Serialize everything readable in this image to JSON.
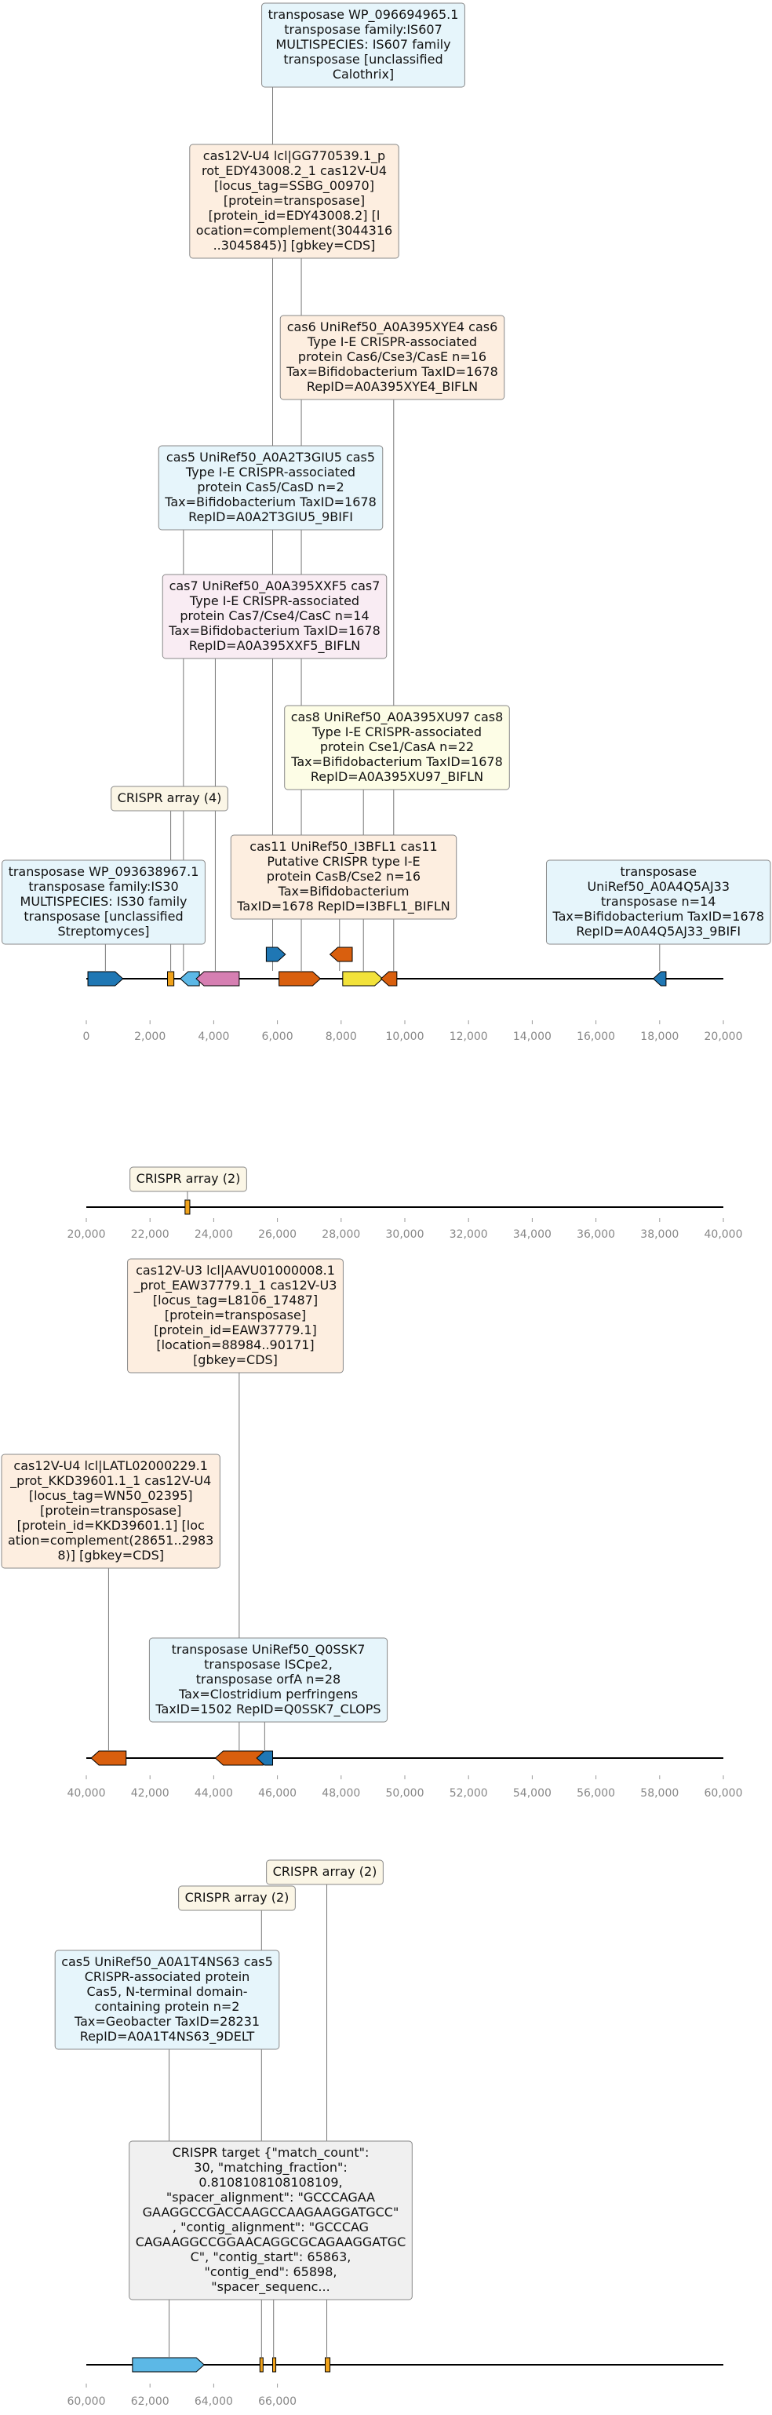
{
  "colors": {
    "blue": "#1f77b4",
    "orange": "#d95f0e",
    "gold": "#f0a21a",
    "light_blue": "#5cb8e6",
    "pink": "#d67fb2",
    "yellow": "#f2e23a",
    "box_blue": "#e6f5fb",
    "box_peach": "#fdeee0",
    "box_yellow": "#fdfde6",
    "box_pink": "#f9ecf3",
    "box_gray": "#f0f0f0",
    "box_cream": "#fbf6e6"
  },
  "tracks": [
    {
      "name": "track-1",
      "range": [
        0,
        20000
      ],
      "ticks": [
        "0",
        "2,000",
        "4,000",
        "6,000",
        "8,000",
        "10,000",
        "12,000",
        "14,000",
        "16,000",
        "18,000",
        "20,000"
      ],
      "features": [
        {
          "start": 50,
          "end": 1150,
          "strand": 1,
          "color": "blue"
        },
        {
          "start": 2550,
          "end": 2750,
          "strand": 0,
          "color": "gold"
        },
        {
          "start": 2950,
          "end": 3550,
          "strand": -1,
          "color": "light_blue"
        },
        {
          "start": 3450,
          "end": 4800,
          "strand": -1,
          "color": "pink"
        },
        {
          "start": 5650,
          "end": 6250,
          "strand": 1,
          "color": "blue",
          "lane": 1
        },
        {
          "start": 6050,
          "end": 7350,
          "strand": 1,
          "color": "orange"
        },
        {
          "start": 7650,
          "end": 8350,
          "strand": -1,
          "color": "orange",
          "lane": 1
        },
        {
          "start": 8050,
          "end": 9300,
          "strand": 1,
          "color": "yellow"
        },
        {
          "start": 9250,
          "end": 9750,
          "strand": -1,
          "color": "orange"
        },
        {
          "start": 17800,
          "end": 18200,
          "strand": -1,
          "color": "blue"
        }
      ],
      "annotations": [
        {
          "lines": [
            "transposase WP_096694965.1",
            "transposase family:IS607",
            "MULTISPECIES: IS607 family",
            "transposase [unclassified",
            "Calothrix]"
          ],
          "box": "box_blue",
          "anchor": 5850
        },
        {
          "lines": [
            "cas12V-U4 lcl|GG770539.1_p",
            "rot_EDY43008.2_1 cas12V-U4",
            "[locus_tag=SSBG_00970]",
            "[protein=transposase]",
            "[protein_id=EDY43008.2] [l",
            "ocation=complement(3044316",
            "..3045845)] [gbkey=CDS]"
          ],
          "box": "box_peach",
          "anchor": 6750
        },
        {
          "lines": [
            "cas6 UniRef50_A0A395XYE4 cas6",
            "Type I-E CRISPR-associated",
            "protein Cas6/Cse3/CasE n=16",
            "Tax=Bifidobacterium TaxID=1678",
            "RepID=A0A395XYE4_BIFLN"
          ],
          "box": "box_peach",
          "anchor": 9650
        },
        {
          "lines": [
            "cas5 UniRef50_A0A2T3GIU5 cas5",
            "Type I-E CRISPR-associated",
            "protein Cas5/CasD n=2",
            "Tax=Bifidobacterium TaxID=1678",
            "RepID=A0A2T3GIU5_9BIFI"
          ],
          "box": "box_blue",
          "anchor": 3050
        },
        {
          "lines": [
            "cas7 UniRef50_A0A395XXF5 cas7",
            "Type I-E CRISPR-associated",
            "protein Cas7/Cse4/CasC n=14",
            "Tax=Bifidobacterium TaxID=1678",
            "RepID=A0A395XXF5_BIFLN"
          ],
          "box": "box_pink",
          "anchor": 4050
        },
        {
          "lines": [
            "cas8 UniRef50_A0A395XU97 cas8",
            "Type I-E CRISPR-associated",
            "protein Cse1/CasA n=22",
            "Tax=Bifidobacterium TaxID=1678",
            "RepID=A0A395XU97_BIFLN"
          ],
          "box": "box_yellow",
          "anchor": 8700
        },
        {
          "lines": [
            "CRISPR array (4)"
          ],
          "box": "box_cream",
          "anchor": 2650
        },
        {
          "lines": [
            "cas11 UniRef50_I3BFL1 cas11",
            "Putative CRISPR type I-E",
            "protein CasB/Cse2 n=16",
            "Tax=Bifidobacterium",
            "TaxID=1678 RepID=I3BFL1_BIFLN"
          ],
          "box": "box_peach",
          "anchor": 7950
        },
        {
          "lines": [
            "transposase WP_093638967.1",
            "transposase family:IS30",
            "MULTISPECIES: IS30 family",
            "transposase [unclassified",
            "Streptomyces]"
          ],
          "box": "box_blue",
          "anchor": 600
        },
        {
          "lines": [
            "transposase",
            "UniRef50_A0A4Q5AJ33",
            "transposase n=14",
            "Tax=Bifidobacterium TaxID=1678",
            "RepID=A0A4Q5AJ33_9BIFI"
          ],
          "box": "box_blue",
          "anchor": 18000
        }
      ]
    },
    {
      "name": "track-2",
      "range": [
        20000,
        40000
      ],
      "ticks": [
        "20,000",
        "22,000",
        "24,000",
        "26,000",
        "28,000",
        "30,000",
        "32,000",
        "34,000",
        "36,000",
        "38,000",
        "40,000"
      ],
      "features": [
        {
          "start": 23100,
          "end": 23250,
          "strand": 0,
          "color": "gold"
        }
      ],
      "annotations": [
        {
          "lines": [
            "CRISPR array (2)"
          ],
          "box": "box_cream",
          "anchor": 23175
        }
      ]
    },
    {
      "name": "track-3",
      "range": [
        40000,
        60000
      ],
      "ticks": [
        "40,000",
        "42,000",
        "44,000",
        "46,000",
        "48,000",
        "50,000",
        "52,000",
        "54,000",
        "56,000",
        "58,000",
        "60,000"
      ],
      "features": [
        {
          "start": 40150,
          "end": 41250,
          "strand": -1,
          "color": "orange"
        },
        {
          "start": 44050,
          "end": 45550,
          "strand": -1,
          "color": "orange"
        },
        {
          "start": 45350,
          "end": 45850,
          "strand": -1,
          "color": "blue"
        }
      ],
      "annotations": [
        {
          "lines": [
            "cas12V-U3 lcl|AAVU01000008.1",
            "_prot_EAW37779.1_1 cas12V-U3",
            "[locus_tag=L8106_17487]",
            "[protein=transposase]",
            "[protein_id=EAW37779.1]",
            "[location=88984..90171]",
            "[gbkey=CDS]"
          ],
          "box": "box_peach",
          "anchor": 44800
        },
        {
          "lines": [
            "cas12V-U4 lcl|LATL02000229.1",
            "_prot_KKD39601.1_1 cas12V-U4",
            "[locus_tag=WN50_02395]",
            "[protein=transposase]",
            "[protein_id=KKD39601.1] [loc",
            "ation=complement(28651..2983",
            "8)] [gbkey=CDS]"
          ],
          "box": "box_peach",
          "anchor": 40700
        },
        {
          "lines": [
            "transposase UniRef50_Q0SSK7",
            "transposase ISCpe2,",
            "transposase orfA n=28",
            "Tax=Clostridium perfringens",
            "TaxID=1502 RepID=Q0SSK7_CLOPS"
          ],
          "box": "box_blue",
          "anchor": 45600
        }
      ]
    },
    {
      "name": "track-4",
      "range": [
        60000,
        80000
      ],
      "ticks": [
        "60,000",
        "62,000",
        "64,000",
        "66,000"
      ],
      "features": [
        {
          "start": 61450,
          "end": 63700,
          "strand": 1,
          "color": "light_blue"
        },
        {
          "start": 65450,
          "end": 65550,
          "strand": 0,
          "color": "gold"
        },
        {
          "start": 65850,
          "end": 65950,
          "strand": 0,
          "color": "gold"
        },
        {
          "start": 67500,
          "end": 67650,
          "strand": 0,
          "color": "gold"
        }
      ],
      "annotations": [
        {
          "lines": [
            "CRISPR array (2)"
          ],
          "box": "box_cream",
          "anchor": 67550
        },
        {
          "lines": [
            "CRISPR array (2)"
          ],
          "box": "box_cream",
          "anchor": 65500
        },
        {
          "lines": [
            "cas5 UniRef50_A0A1T4NS63 cas5",
            "CRISPR-associated protein",
            "Cas5, N-terminal domain-",
            "containing protein n=2",
            "Tax=Geobacter TaxID=28231",
            "RepID=A0A1T4NS63_9DELT"
          ],
          "box": "box_blue",
          "anchor": 62600
        },
        {
          "lines": [
            "CRISPR target {\"match_count\":",
            "30, \"matching_fraction\":",
            "0.8108108108108109,",
            "\"spacer_alignment\": \"GCCCAGAA",
            "GAAGGCCGACCAAGCCAAGAAGGATGCC\"",
            ", \"contig_alignment\": \"GCCCAG",
            "CAGAAGGCCGGAACAGGCGCAGAAGGATGC",
            "C\", \"contig_start\": 65863,",
            "\"contig_end\": 65898,",
            "\"spacer_sequenc..."
          ],
          "box": "box_gray",
          "anchor": 65880
        }
      ]
    }
  ]
}
